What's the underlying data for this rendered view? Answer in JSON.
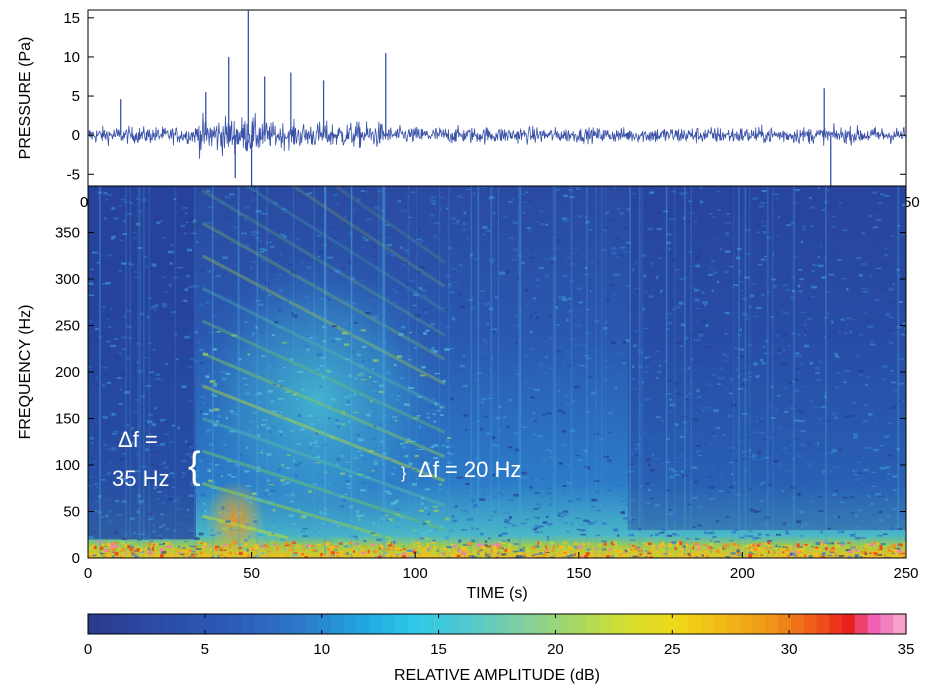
{
  "chart_data": [
    {
      "type": "line",
      "ylabel": "PRESSURE (Pa)",
      "xlim": [
        0,
        250
      ],
      "ylim": [
        -6.5,
        16
      ],
      "yticks": [
        "15",
        "10",
        "5",
        "0",
        "-5"
      ],
      "xtick_fragments": [
        "0",
        "50"
      ],
      "series_color": "#3a52a8",
      "spikes": [
        {
          "x": 10,
          "y": 4.6
        },
        {
          "x": 36,
          "y": 5.5
        },
        {
          "x": 43,
          "y": 10
        },
        {
          "x": 45,
          "y": -5.5
        },
        {
          "x": 49,
          "y": 16
        },
        {
          "x": 50,
          "y": -6.5
        },
        {
          "x": 54,
          "y": 7.5
        },
        {
          "x": 62,
          "y": 8
        },
        {
          "x": 72,
          "y": 7
        },
        {
          "x": 91,
          "y": 10.5
        },
        {
          "x": 225,
          "y": 6
        },
        {
          "x": 227,
          "y": -6.5
        }
      ]
    },
    {
      "type": "heatmap",
      "xlabel": "TIME (s)",
      "ylabel": "FREQUENCY (Hz)",
      "xlim": [
        0,
        250
      ],
      "ylim": [
        0,
        400
      ],
      "xticks": [
        "0",
        "50",
        "100",
        "150",
        "200",
        "250"
      ],
      "yticks": [
        "0",
        "50",
        "100",
        "150",
        "200",
        "250",
        "300",
        "350"
      ],
      "annotations": [
        {
          "text": "Δf =",
          "line2": "35 Hz",
          "x": 33,
          "y": 115
        },
        {
          "text": "Δf = 20 Hz",
          "x": 97,
          "y": 95
        }
      ],
      "colormap": "jet"
    }
  ],
  "colorbar": {
    "label": "RELATIVE AMPLITUDE (dB)",
    "range": [
      0,
      35
    ],
    "ticks": [
      "0",
      "5",
      "10",
      "15",
      "20",
      "25",
      "30",
      "35"
    ]
  }
}
